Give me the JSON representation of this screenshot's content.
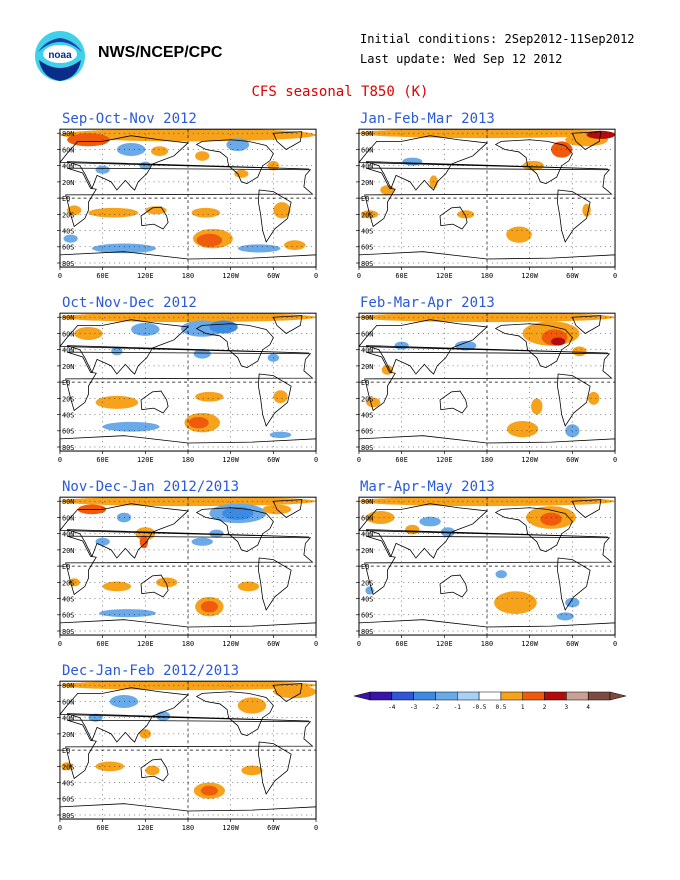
{
  "header": {
    "org": "NWS/NCEP/CPC",
    "initial_conditions": "Initial conditions: 2Sep2012-11Sep2012",
    "last_update": "Last update: Wed Sep 12 2012",
    "title": "CFS seasonal T850 (K)"
  },
  "logo": {
    "name": "noaa-logo",
    "text": "noaa"
  },
  "axes": {
    "lat_labels": [
      "80N",
      "60N",
      "40N",
      "20N",
      "EQ",
      "20S",
      "40S",
      "60S",
      "80S"
    ],
    "lon_labels": [
      "0",
      "60E",
      "120E",
      "180",
      "120W",
      "60W",
      "0"
    ]
  },
  "panels": [
    {
      "title": "Sep-Oct-Nov 2012"
    },
    {
      "title": "Jan-Feb-Mar 2013"
    },
    {
      "title": "Oct-Nov-Dec 2012"
    },
    {
      "title": "Feb-Mar-Apr 2013"
    },
    {
      "title": "Nov-Dec-Jan 2012/2013"
    },
    {
      "title": "Mar-Apr-May 2013"
    },
    {
      "title": "Dec-Jan-Feb 2012/2013"
    }
  ],
  "legend": {
    "labels": [
      "-4",
      "-3",
      "-2",
      "-1",
      "-0.5",
      "0.5",
      "1",
      "2",
      "3",
      "4"
    ],
    "colors": [
      "#3a14a8",
      "#2f56d6",
      "#3c8ae2",
      "#6aaae8",
      "#a8d0f4",
      "#ffffff",
      "#f7a21b",
      "#f05a0c",
      "#b40c0c",
      "#c9a094",
      "#7e4a40"
    ]
  },
  "colors": {
    "title_red": "#e00000",
    "panel_title_blue": "#2a5ad8",
    "warm_light": "#f7a21b",
    "warm_med": "#f05a0c",
    "warm_dark": "#b40c0c",
    "cool_light": "#6aaae8",
    "cool_med": "#3c8ae2"
  }
}
